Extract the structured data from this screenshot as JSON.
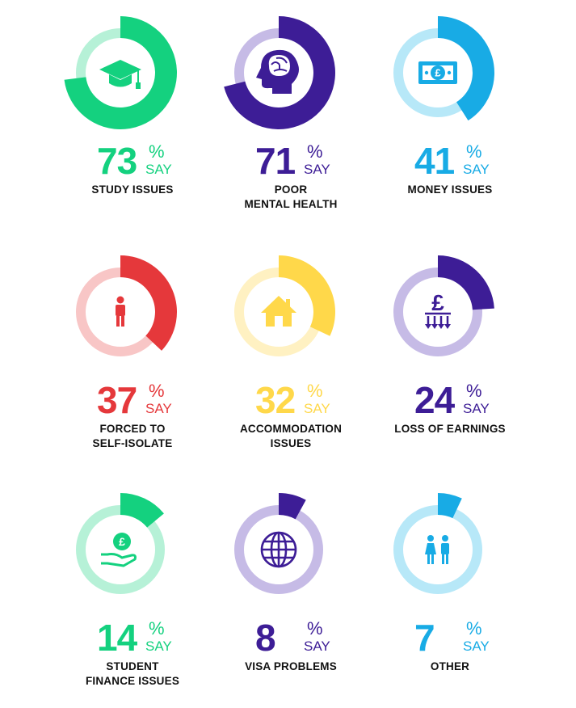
{
  "chart_data": {
    "type": "pie",
    "unit": "%",
    "items": [
      {
        "value": 73,
        "label_lines": [
          "STUDY ISSUES"
        ],
        "say": "SAY",
        "color": "#14d17f",
        "track": "#b6f1d7",
        "icon": "graduation-cap-icon"
      },
      {
        "value": 71,
        "label_lines": [
          "POOR",
          "MENTAL HEALTH"
        ],
        "say": "SAY",
        "color": "#3d1d96",
        "track": "#c6bbe6",
        "icon": "brain-head-icon"
      },
      {
        "value": 41,
        "label_lines": [
          "MONEY ISSUES"
        ],
        "say": "SAY",
        "color": "#18abe5",
        "track": "#b7e8f8",
        "icon": "pound-banknote-icon"
      },
      {
        "value": 37,
        "label_lines": [
          "FORCED TO",
          "SELF-ISOLATE"
        ],
        "say": "SAY",
        "color": "#e5383b",
        "track": "#f8c6c6",
        "icon": "person-icon"
      },
      {
        "value": 32,
        "label_lines": [
          "ACCOMMODATION",
          "ISSUES"
        ],
        "say": "SAY",
        "color": "#ffd84a",
        "track": "#fff1c2",
        "icon": "house-icon"
      },
      {
        "value": 24,
        "label_lines": [
          "LOSS OF EARNINGS"
        ],
        "say": "SAY",
        "color": "#3d1d96",
        "track": "#c6bbe6",
        "icon": "pound-down-arrows-icon"
      },
      {
        "value": 14,
        "label_lines": [
          "STUDENT",
          "FINANCE ISSUES"
        ],
        "say": "SAY",
        "color": "#14d17f",
        "track": "#b6f1d7",
        "icon": "hand-coin-icon"
      },
      {
        "value": 8,
        "label_lines": [
          "VISA PROBLEMS"
        ],
        "say": "SAY",
        "color": "#3d1d96",
        "track": "#c6bbe6",
        "icon": "globe-icon"
      },
      {
        "value": 7,
        "label_lines": [
          "OTHER"
        ],
        "say": "SAY",
        "color": "#18abe5",
        "track": "#b7e8f8",
        "icon": "people-icon"
      }
    ]
  }
}
